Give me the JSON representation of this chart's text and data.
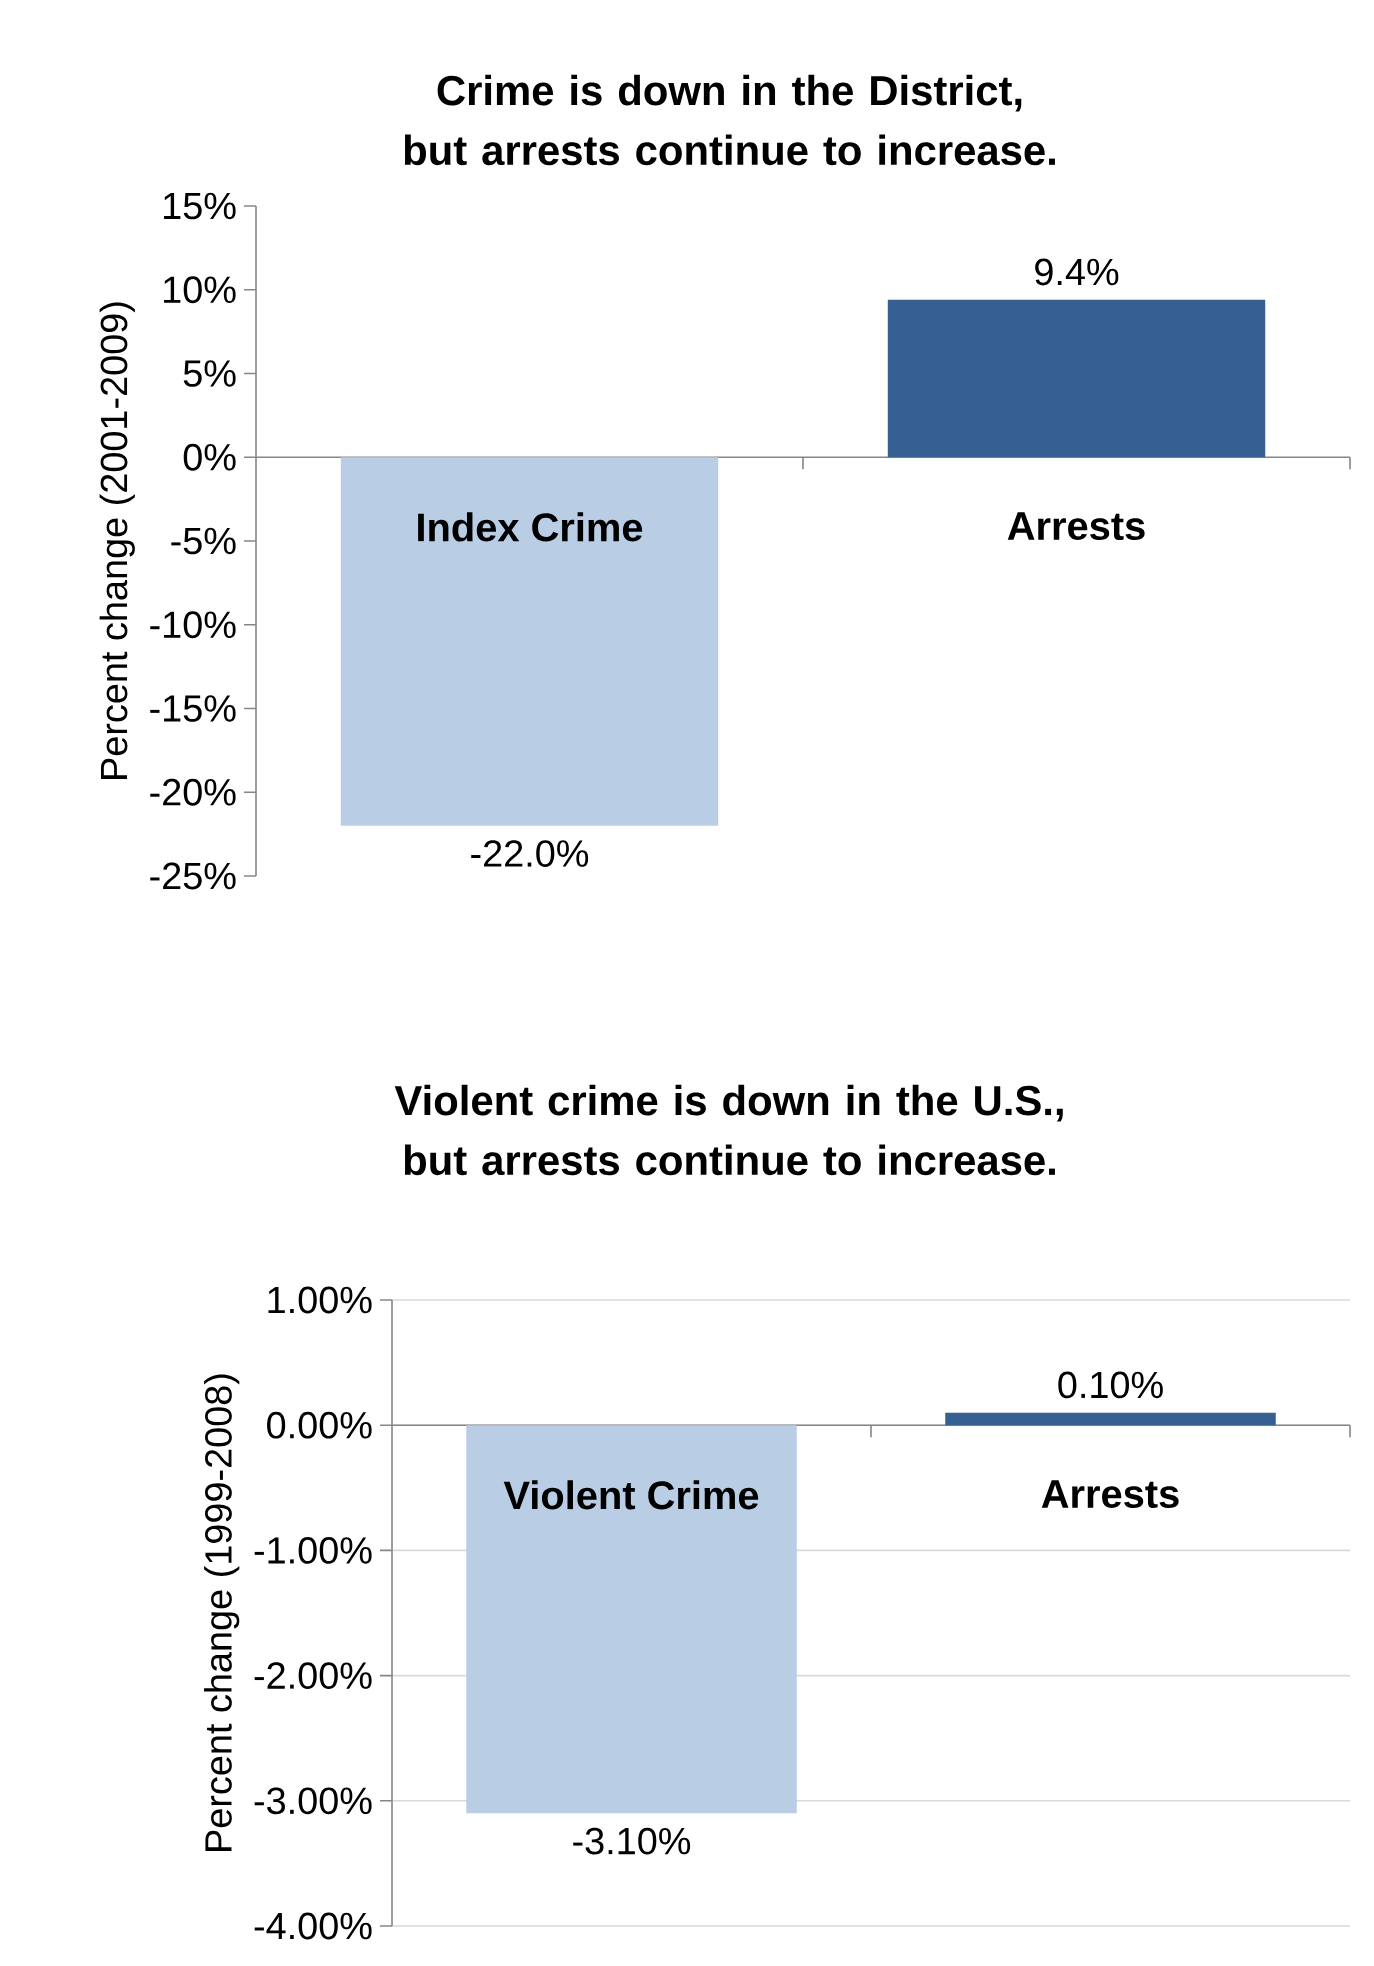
{
  "chart_data": [
    {
      "type": "bar",
      "title": "Crime is down in the District, but arrests continue to increase.",
      "ylabel": "Percent change (2001-2009)",
      "categories": [
        "Index Crime",
        "Arrests"
      ],
      "values": [
        -22.0,
        9.4
      ],
      "colors": [
        "#b9cde5",
        "#376092"
      ],
      "value_labels": [
        "-22.0%",
        "9.4%"
      ],
      "ylim": [
        -25,
        15
      ],
      "yticks": [
        {
          "value": -25,
          "label": "-25%"
        },
        {
          "value": -20,
          "label": "-20%"
        },
        {
          "value": -15,
          "label": "-15%"
        },
        {
          "value": -10,
          "label": "-10%"
        },
        {
          "value": -5,
          "label": "-5%"
        },
        {
          "value": 0,
          "label": "0%"
        },
        {
          "value": 5,
          "label": "5%"
        },
        {
          "value": 10,
          "label": "10%"
        },
        {
          "value": 15,
          "label": "15%"
        }
      ],
      "grid": false
    },
    {
      "type": "bar",
      "title": "Violent crime is down in the U.S., but arrests continue to increase.",
      "ylabel": "Percent change (1999-2008)",
      "categories": [
        "Violent Crime",
        "Arrests"
      ],
      "values": [
        -3.1,
        0.1
      ],
      "colors": [
        "#b9cde5",
        "#376092"
      ],
      "value_labels": [
        "-3.10%",
        "0.10%"
      ],
      "ylim": [
        -4,
        1
      ],
      "yticks": [
        {
          "value": -4,
          "label": "-4.00%"
        },
        {
          "value": -3,
          "label": "-3.00%"
        },
        {
          "value": -2,
          "label": "-2.00%"
        },
        {
          "value": -1,
          "label": "-1.00%"
        },
        {
          "value": 0,
          "label": "0.00%"
        },
        {
          "value": 1,
          "label": "1.00%"
        }
      ],
      "grid": "y"
    }
  ]
}
